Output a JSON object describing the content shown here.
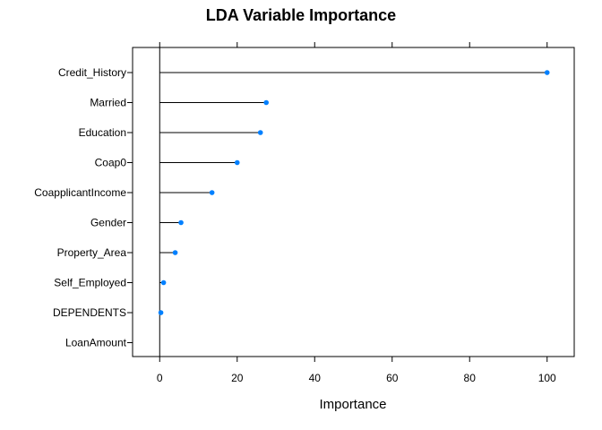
{
  "chart_data": {
    "type": "lollipop",
    "title": "LDA Variable Importance",
    "xlabel": "Importance",
    "ylabel": "",
    "xlim": [
      -7,
      107
    ],
    "x_ticks": [
      0,
      20,
      40,
      60,
      80,
      100
    ],
    "categories": [
      "Credit_History",
      "Married",
      "Education",
      "Coap0",
      "CoapplicantIncome",
      "Gender",
      "Property_Area",
      "Self_Employed",
      "DEPENDENTS",
      "LoanAmount"
    ],
    "values": [
      100,
      27.5,
      26,
      20,
      13.5,
      5.5,
      4,
      1,
      0.3,
      null
    ],
    "point_color": "#0080FF",
    "grid": false,
    "legend": "none"
  }
}
